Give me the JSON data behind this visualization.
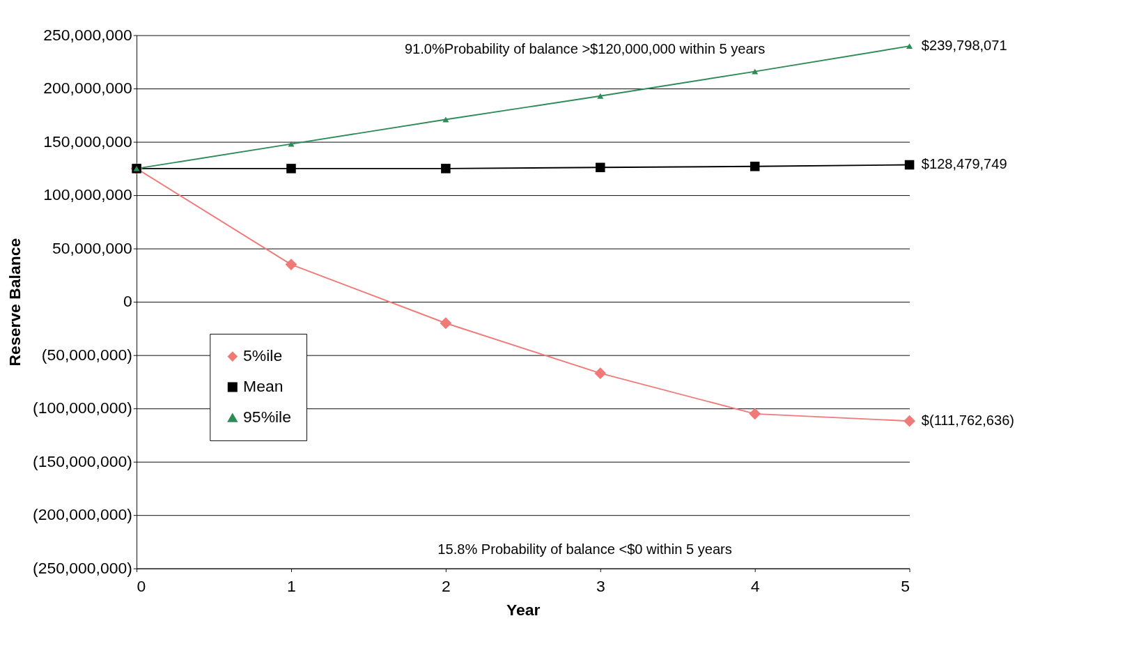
{
  "chart_data": {
    "type": "line",
    "xlabel": "Year",
    "ylabel": "Reserve  Balance",
    "x": [
      0,
      1,
      2,
      3,
      4,
      5
    ],
    "series": [
      {
        "name": "5%ile",
        "color": "#f07a78",
        "marker": "diamond",
        "values": [
          125000000,
          35000000,
          -20000000,
          -67000000,
          -105000000,
          -111762636
        ],
        "value_labels": [
          null,
          null,
          null,
          null,
          null,
          "$(111,762,636)"
        ]
      },
      {
        "name": "Mean",
        "color": "#000000",
        "marker": "square",
        "values": [
          125000000,
          125000000,
          125000000,
          126000000,
          127000000,
          128479749
        ],
        "value_labels": [
          null,
          null,
          null,
          null,
          null,
          "$128,479,749"
        ]
      },
      {
        "name": "95%ile",
        "color": "#2e8b57",
        "marker": "triangle",
        "values": [
          125000000,
          148000000,
          171000000,
          193000000,
          216000000,
          239798071
        ],
        "value_labels": [
          null,
          null,
          null,
          null,
          null,
          "$239,798,071"
        ]
      }
    ],
    "xlim": [
      0,
      5
    ],
    "xticks": [
      0,
      1,
      2,
      3,
      4,
      5
    ],
    "ylim": [
      -250000000,
      250000000
    ],
    "yticks": [
      {
        "value": -250000000,
        "label": "(250,000,000)"
      },
      {
        "value": -200000000,
        "label": "(200,000,000)"
      },
      {
        "value": -150000000,
        "label": "(150,000,000)"
      },
      {
        "value": -100000000,
        "label": "(100,000,000)"
      },
      {
        "value": -50000000,
        "label": "(50,000,000)"
      },
      {
        "value": 0,
        "label": "0"
      },
      {
        "value": 50000000,
        "label": "50,000,000"
      },
      {
        "value": 100000000,
        "label": "100,000,000"
      },
      {
        "value": 150000000,
        "label": "150,000,000"
      },
      {
        "value": 200000000,
        "label": "200,000,000"
      },
      {
        "value": 250000000,
        "label": "250,000,000"
      }
    ],
    "grid": "y",
    "legend": "left",
    "line_style": "solid",
    "annotations": [
      "91.0%Probability of balance >$120,000,000    within 5 years",
      "15.8%  Probability of balance <$0         within 5 years"
    ]
  }
}
